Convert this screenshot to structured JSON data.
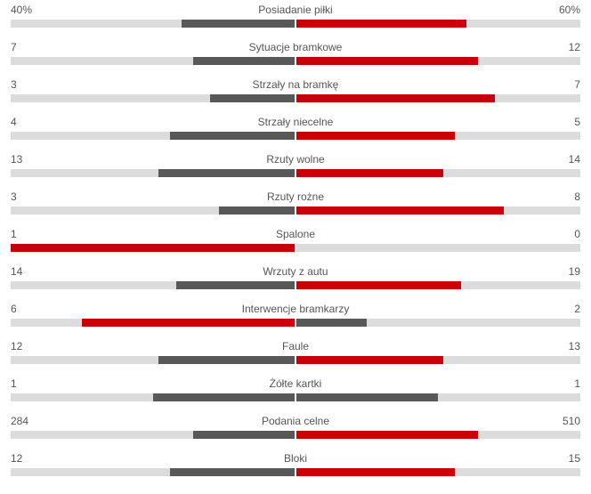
{
  "colors": {
    "leader": "#c8000a",
    "trailer": "#585858",
    "track": "#dcdcdc"
  },
  "stats": [
    {
      "label": "Posiadanie piłki",
      "home": "40%",
      "away": "60%",
      "home_share": 0.4,
      "away_share": 0.6
    },
    {
      "label": "Sytuacje bramkowe",
      "home": "7",
      "away": "12",
      "home_share": 0.36,
      "away_share": 0.64
    },
    {
      "label": "Strzały na bramkę",
      "home": "3",
      "away": "7",
      "home_share": 0.3,
      "away_share": 0.7
    },
    {
      "label": "Strzały niecelne",
      "home": "4",
      "away": "5",
      "home_share": 0.44,
      "away_share": 0.56
    },
    {
      "label": "Rzuty wolne",
      "home": "13",
      "away": "14",
      "home_share": 0.48,
      "away_share": 0.52
    },
    {
      "label": "Rzuty rożne",
      "home": "3",
      "away": "8",
      "home_share": 0.27,
      "away_share": 0.73
    },
    {
      "label": "Spalone",
      "home": "1",
      "away": "0",
      "home_share": 1.0,
      "away_share": 0.0
    },
    {
      "label": "Wrzuty z autu",
      "home": "14",
      "away": "19",
      "home_share": 0.42,
      "away_share": 0.58
    },
    {
      "label": "Interwencje bramkarzy",
      "home": "6",
      "away": "2",
      "home_share": 0.75,
      "away_share": 0.25
    },
    {
      "label": "Faule",
      "home": "12",
      "away": "13",
      "home_share": 0.48,
      "away_share": 0.52
    },
    {
      "label": "Żółte kartki",
      "home": "1",
      "away": "1",
      "home_share": 0.5,
      "away_share": 0.5
    },
    {
      "label": "Podania celne",
      "home": "284",
      "away": "510",
      "home_share": 0.36,
      "away_share": 0.64
    },
    {
      "label": "Bloki",
      "home": "12",
      "away": "15",
      "home_share": 0.44,
      "away_share": 0.56
    }
  ]
}
